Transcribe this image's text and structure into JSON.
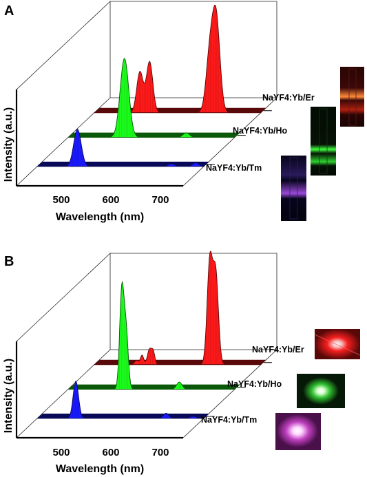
{
  "colors": {
    "Er": "#ff1a1a",
    "Ho": "#1bff1b",
    "Tm": "#1a1aff"
  },
  "chart_data": [
    {
      "type": "area",
      "panel_label": "A",
      "xlabel": "Wavelength (nm)",
      "ylabel": "Intensity (a.u.)",
      "x_ticks": [
        "500",
        "600",
        "700"
      ],
      "xlim": [
        440,
        750
      ],
      "series": [
        {
          "name": "NaYF4:Yb/Tm",
          "color": "Tm",
          "peaks": [
            {
              "x": 515,
              "y": 0.41,
              "w": 7
            },
            {
              "x": 690,
              "y": 0.03,
              "w": 6
            },
            {
              "x": 735,
              "y": 0.04,
              "w": 6
            }
          ]
        },
        {
          "name": "NaYF4:Yb/Ho",
          "color": "Ho",
          "peaks": [
            {
              "x": 545,
              "y": 0.87,
              "w": 8
            },
            {
              "x": 660,
              "y": 0.05,
              "w": 6
            }
          ]
        },
        {
          "name": "NaYF4:Yb/Er",
          "color": "Er",
          "peaks": [
            {
              "x": 525,
              "y": 0.45,
              "w": 6
            },
            {
              "x": 543,
              "y": 0.56,
              "w": 6
            },
            {
              "x": 655,
              "y": 0.62,
              "w": 7
            },
            {
              "x": 667,
              "y": 1.0,
              "w": 7
            }
          ]
        }
      ]
    },
    {
      "type": "area",
      "panel_label": "B",
      "xlabel": "Wavelength (nm)",
      "ylabel": "Intensity (a.u.)",
      "x_ticks": [
        "500",
        "600",
        "700"
      ],
      "xlim": [
        440,
        750
      ],
      "series": [
        {
          "name": "NaYF4:Yb/Tm",
          "color": "Tm",
          "peaks": [
            {
              "x": 512,
              "y": 0.36,
              "w": 5
            },
            {
              "x": 680,
              "y": 0.05,
              "w": 5
            },
            {
              "x": 730,
              "y": 0.02,
              "w": 6
            }
          ]
        },
        {
          "name": "NaYF4:Yb/Ho",
          "color": "Ho",
          "peaks": [
            {
              "x": 540,
              "y": 0.95,
              "w": 4
            },
            {
              "x": 548,
              "y": 0.55,
              "w": 4
            },
            {
              "x": 647,
              "y": 0.07,
              "w": 5
            }
          ]
        },
        {
          "name": "NaYF4:Yb/Er",
          "color": "Er",
          "peaks": [
            {
              "x": 519,
              "y": 0.04,
              "w": 4
            },
            {
              "x": 529,
              "y": 0.09,
              "w": 3
            },
            {
              "x": 543,
              "y": 0.15,
              "w": 4
            },
            {
              "x": 550,
              "y": 0.11,
              "w": 3
            },
            {
              "x": 655,
              "y": 1.0,
              "w": 5
            },
            {
              "x": 666,
              "y": 0.87,
              "w": 5
            }
          ]
        }
      ]
    }
  ]
}
